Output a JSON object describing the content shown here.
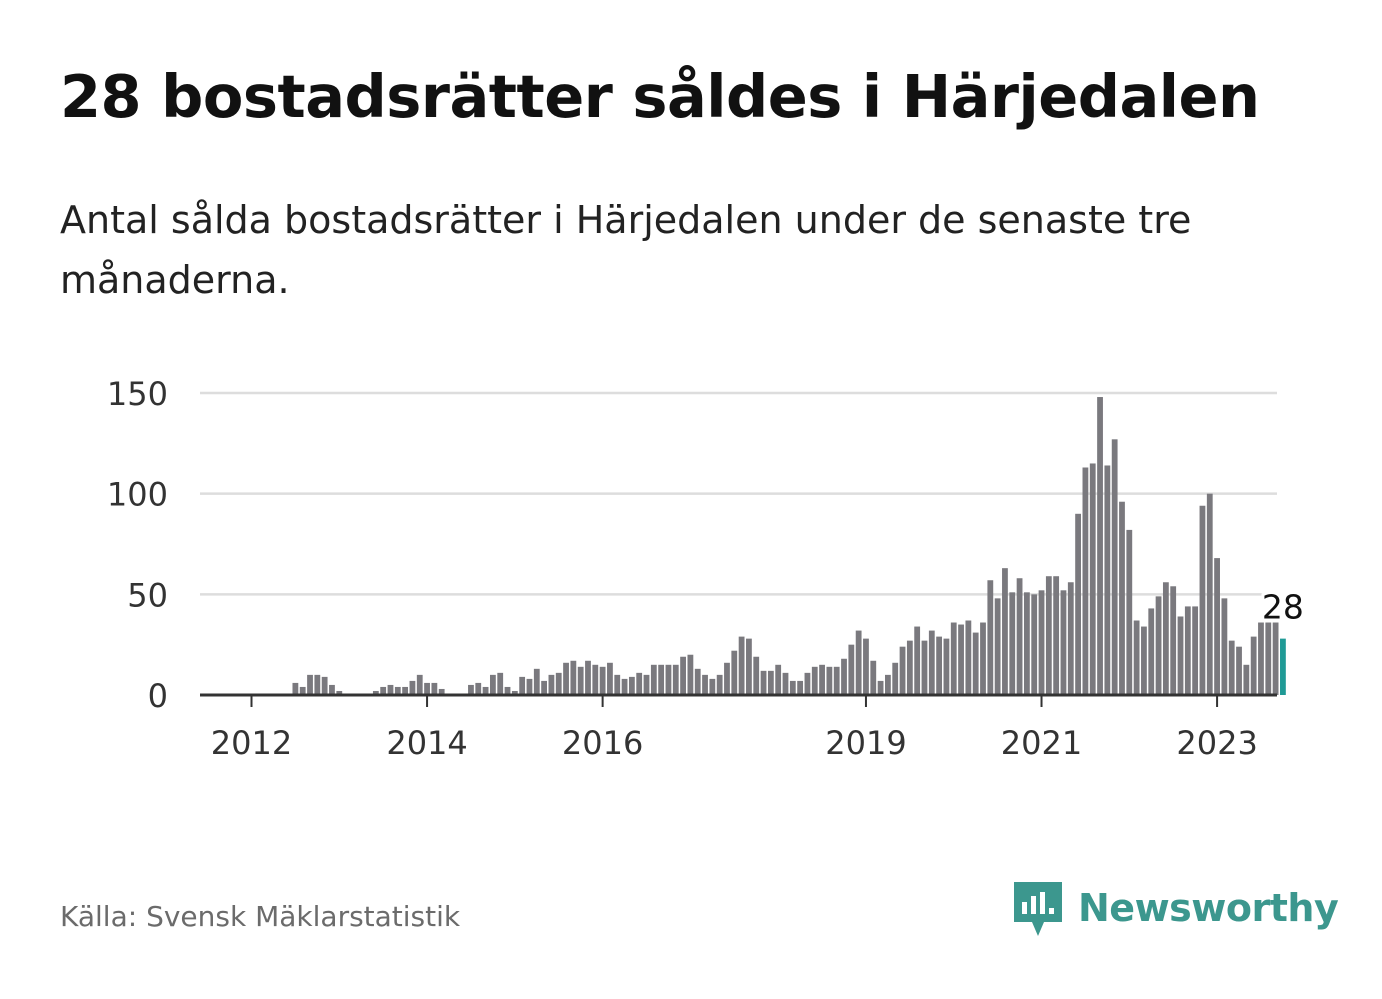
{
  "title": "28 bostadsrätter såldes i Härjedalen",
  "subtitle": "Antal sålda bostadsrätter i Härjedalen under de senaste tre månaderna.",
  "source": "Källa: Svensk Mäklarstatistik",
  "brand": "Newsworthy",
  "colors": {
    "bars": "#7a797e",
    "highlight": "#1f9a96",
    "grid": "#dddddd",
    "axis": "#333333",
    "brand": "#3c978e"
  },
  "chart_data": {
    "type": "bar",
    "title": "28 bostadsrätter såldes i Härjedalen",
    "xlabel": "",
    "ylabel": "",
    "ylim": [
      0,
      150
    ],
    "yticks": [
      0,
      50,
      100,
      150
    ],
    "xtick_labels": [
      "2012",
      "2014",
      "2016",
      "2019",
      "2021",
      "2023"
    ],
    "grid": true,
    "highlight_label": "28",
    "series": [
      {
        "values": [
          0,
          0,
          0,
          0,
          0,
          0,
          6,
          4,
          10,
          10,
          9,
          5,
          2,
          0,
          0,
          0,
          0,
          2,
          4,
          5,
          4,
          4,
          7,
          10,
          6,
          6,
          3,
          0,
          0,
          0,
          5,
          6,
          4,
          10,
          11,
          4,
          2,
          9,
          8,
          13,
          7,
          10,
          11,
          16,
          17,
          14,
          17,
          15,
          14,
          16,
          10,
          8,
          9,
          11,
          10,
          15,
          15,
          15,
          15,
          19,
          20,
          13,
          10,
          8,
          10,
          16,
          22,
          29,
          28,
          19,
          12,
          12,
          15,
          11,
          7,
          7,
          11,
          14,
          15,
          14,
          14,
          18,
          25,
          32,
          28,
          17,
          7,
          10,
          16,
          24,
          27,
          34,
          27,
          32,
          29,
          28,
          36,
          35,
          37,
          31,
          36,
          57,
          48,
          63,
          51,
          58,
          51,
          50,
          52,
          59,
          59,
          52,
          56,
          90,
          113,
          115,
          148,
          114,
          127,
          96,
          82,
          37,
          34,
          43,
          49,
          56,
          54,
          39,
          44,
          44,
          94,
          100,
          68,
          48,
          27,
          24,
          15,
          29,
          36,
          36,
          36,
          28
        ]
      }
    ]
  }
}
